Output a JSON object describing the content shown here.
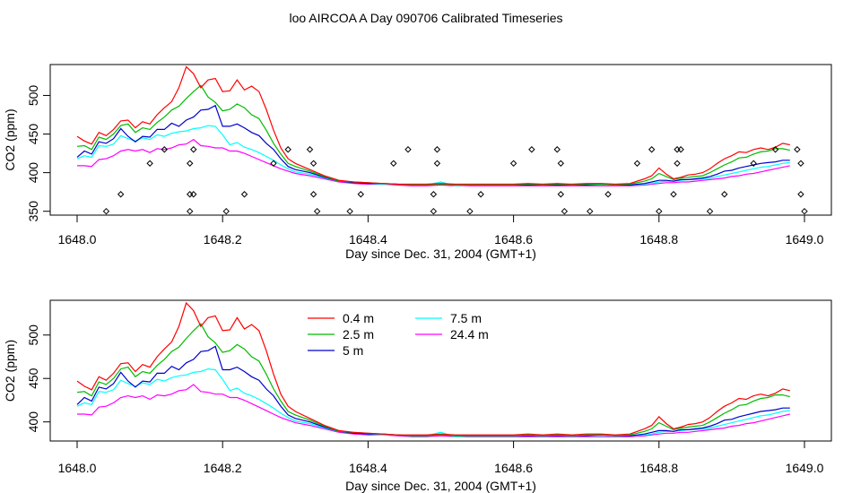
{
  "title": "loo AIRCOA A  Day 090706  Calibrated Timeseries",
  "colors": {
    "0.4 m": "#ff0000",
    "2.5 m": "#00bb00",
    "5 m": "#0000cc",
    "7.5 m": "#00ffff",
    "24.4 m": "#ff00ff",
    "points": "#000000"
  },
  "chart_data": [
    {
      "type": "line",
      "xlabel": "Day since Dec. 31, 2004 (GMT+1)",
      "ylabel": "CO2 (ppm)",
      "xlim": [
        1648.0,
        1649.0
      ],
      "ylim": [
        345,
        540
      ],
      "x_ticks": [
        "1648.0",
        "1648.2",
        "1648.4",
        "1648.6",
        "1648.8",
        "1649.0"
      ],
      "y_ticks": [
        "350",
        "400",
        "450",
        "500"
      ],
      "series_x": [
        1648.0,
        1648.01,
        1648.02,
        1648.03,
        1648.04,
        1648.05,
        1648.06,
        1648.07,
        1648.08,
        1648.09,
        1648.1,
        1648.11,
        1648.12,
        1648.13,
        1648.14,
        1648.15,
        1648.16,
        1648.17,
        1648.18,
        1648.19,
        1648.2,
        1648.21,
        1648.22,
        1648.23,
        1648.24,
        1648.25,
        1648.26,
        1648.27,
        1648.28,
        1648.29,
        1648.3,
        1648.32,
        1648.34,
        1648.36,
        1648.38,
        1648.4,
        1648.42,
        1648.44,
        1648.46,
        1648.48,
        1648.5,
        1648.52,
        1648.54,
        1648.56,
        1648.58,
        1648.6,
        1648.62,
        1648.64,
        1648.66,
        1648.68,
        1648.7,
        1648.72,
        1648.74,
        1648.76,
        1648.78,
        1648.79,
        1648.8,
        1648.81,
        1648.82,
        1648.83,
        1648.84,
        1648.85,
        1648.86,
        1648.87,
        1648.88,
        1648.89,
        1648.9,
        1648.91,
        1648.92,
        1648.93,
        1648.94,
        1648.95,
        1648.96,
        1648.97,
        1648.98
      ],
      "series": [
        {
          "name": "0.4 m",
          "values": [
            447,
            441,
            437,
            452,
            448,
            456,
            467,
            468,
            458,
            466,
            463,
            475,
            484,
            492,
            510,
            537,
            528,
            510,
            520,
            522,
            505,
            506,
            520,
            507,
            512,
            505,
            482,
            455,
            432,
            418,
            412,
            404,
            396,
            390,
            388,
            387,
            386,
            385,
            385,
            385,
            386,
            385,
            385,
            385,
            385,
            385,
            386,
            385,
            386,
            385,
            386,
            386,
            385,
            386,
            392,
            396,
            406,
            398,
            392,
            394,
            397,
            398,
            400,
            405,
            412,
            418,
            422,
            427,
            426,
            430,
            432,
            430,
            433,
            438,
            436
          ]
        },
        {
          "name": "2.5 m",
          "values": [
            434,
            435,
            430,
            446,
            443,
            450,
            461,
            463,
            452,
            458,
            456,
            465,
            472,
            481,
            486,
            496,
            505,
            513,
            498,
            491,
            480,
            482,
            489,
            484,
            475,
            470,
            455,
            438,
            424,
            412,
            408,
            402,
            395,
            389,
            388,
            387,
            386,
            385,
            384,
            384,
            385,
            384,
            384,
            384,
            384,
            384,
            385,
            384,
            385,
            384,
            385,
            385,
            384,
            385,
            389,
            392,
            399,
            395,
            391,
            393,
            394,
            395,
            396,
            400,
            405,
            410,
            414,
            419,
            420,
            424,
            427,
            428,
            431,
            431,
            429
          ]
        },
        {
          "name": "5 m",
          "values": [
            420,
            428,
            424,
            440,
            438,
            444,
            457,
            447,
            440,
            447,
            446,
            456,
            456,
            464,
            460,
            468,
            472,
            481,
            482,
            487,
            460,
            460,
            463,
            458,
            452,
            448,
            438,
            430,
            418,
            408,
            404,
            400,
            394,
            389,
            387,
            386,
            386,
            385,
            384,
            384,
            385,
            384,
            384,
            384,
            384,
            384,
            384,
            384,
            384,
            384,
            384,
            385,
            384,
            384,
            386,
            388,
            390,
            390,
            389,
            391,
            391,
            392,
            393,
            395,
            398,
            402,
            403,
            406,
            408,
            410,
            412,
            413,
            414,
            416,
            416
          ]
        },
        {
          "name": "7.5 m",
          "values": [
            418,
            422,
            420,
            435,
            434,
            437,
            448,
            444,
            441,
            445,
            443,
            449,
            447,
            451,
            453,
            454,
            457,
            458,
            461,
            460,
            449,
            436,
            439,
            433,
            430,
            426,
            421,
            416,
            410,
            405,
            401,
            398,
            393,
            389,
            387,
            386,
            385,
            385,
            384,
            384,
            388,
            383,
            384,
            384,
            384,
            384,
            384,
            384,
            384,
            384,
            384,
            384,
            384,
            384,
            385,
            386,
            388,
            389,
            389,
            390,
            391,
            391,
            392,
            393,
            395,
            397,
            399,
            401,
            403,
            405,
            407,
            408,
            410,
            412,
            413
          ]
        },
        {
          "name": "24.4 m",
          "values": [
            409,
            409,
            408,
            417,
            418,
            422,
            428,
            430,
            428,
            430,
            426,
            431,
            430,
            432,
            436,
            437,
            443,
            435,
            434,
            432,
            432,
            428,
            428,
            425,
            421,
            417,
            413,
            409,
            405,
            402,
            399,
            396,
            392,
            388,
            386,
            385,
            385,
            384,
            383,
            383,
            384,
            383,
            383,
            383,
            383,
            383,
            383,
            383,
            383,
            383,
            383,
            383,
            383,
            383,
            384,
            385,
            386,
            387,
            387,
            388,
            388,
            389,
            390,
            391,
            392,
            393,
            395,
            396,
            398,
            399,
            401,
            403,
            405,
            407,
            409
          ]
        }
      ],
      "points": {
        "x": [
          1648.04,
          1648.06,
          1648.1,
          1648.12,
          1648.155,
          1648.155,
          1648.155,
          1648.16,
          1648.16,
          1648.205,
          1648.23,
          1648.27,
          1648.29,
          1648.32,
          1648.325,
          1648.325,
          1648.33,
          1648.375,
          1648.39,
          1648.435,
          1648.455,
          1648.49,
          1648.49,
          1648.495,
          1648.495,
          1648.54,
          1648.555,
          1648.6,
          1648.625,
          1648.66,
          1648.665,
          1648.665,
          1648.67,
          1648.705,
          1648.73,
          1648.77,
          1648.79,
          1648.8,
          1648.82,
          1648.825,
          1648.825,
          1648.83,
          1648.87,
          1648.89,
          1648.93,
          1648.96,
          1648.99,
          1648.995,
          1648.995,
          1649.0
        ],
        "y": [
          350,
          372,
          412,
          430,
          350,
          372,
          412,
          430,
          372,
          350,
          372,
          412,
          430,
          430,
          412,
          372,
          350,
          350,
          372,
          412,
          430,
          350,
          372,
          412,
          430,
          350,
          372,
          412,
          430,
          430,
          412,
          372,
          350,
          350,
          372,
          412,
          430,
          350,
          372,
          412,
          430,
          430,
          350,
          372,
          412,
          430,
          430,
          412,
          372,
          350
        ]
      }
    },
    {
      "type": "line",
      "xlabel": "Day since Dec. 31, 2004 (GMT+1)",
      "ylabel": "CO2 (ppm)",
      "xlim": [
        1648.0,
        1649.0
      ],
      "ylim": [
        380,
        540
      ],
      "x_ticks": [
        "1648.0",
        "1648.2",
        "1648.4",
        "1648.6",
        "1648.8",
        "1649.0"
      ],
      "y_ticks": [
        "400",
        "450",
        "500"
      ],
      "legend": {
        "placement": "top-center",
        "entries": [
          "0.4 m",
          "2.5 m",
          "5 m",
          "7.5 m",
          "24.4 m"
        ]
      },
      "series_from_panel": 0
    }
  ]
}
